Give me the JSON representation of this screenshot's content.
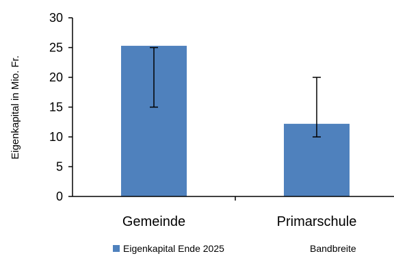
{
  "chart_data": {
    "type": "bar",
    "categories": [
      "Gemeinde",
      "Primarschule"
    ],
    "series": [
      {
        "name": "Eigenkapital Ende 2025",
        "values": [
          25.3,
          12.2
        ],
        "color": "#4f81bd"
      }
    ],
    "error_bars": {
      "name": "Bandbreite",
      "ranges": [
        [
          15,
          25
        ],
        [
          10,
          20
        ]
      ]
    },
    "ylabel": "Eigenkapital in Mio. Fr.",
    "ylim": [
      0,
      30
    ],
    "yticks": [
      0,
      5,
      10,
      15,
      20,
      25,
      30
    ],
    "grid": false,
    "legend_position": "bottom"
  }
}
